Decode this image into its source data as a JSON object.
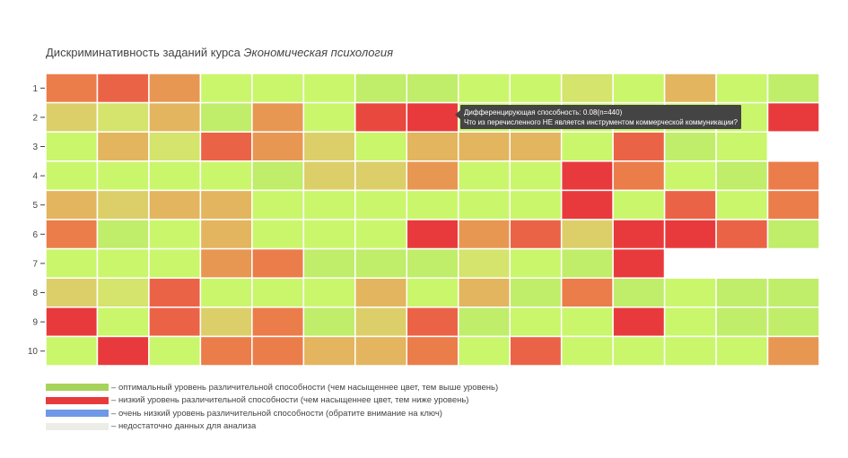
{
  "chart_data": {
    "type": "heatmap",
    "title_main": "Дискриминативность заданий курса ",
    "title_course": "Экономическая психология",
    "y_categories": [
      "1",
      "2",
      "3",
      "4",
      "5",
      "6",
      "7",
      "8",
      "9",
      "10"
    ],
    "columns": 15,
    "colors": {
      "G1": "#b4e069",
      "G2": "#c0ed6a",
      "G3": "#caf66c",
      "Y1": "#d4e46c",
      "Y2": "#dccf6a",
      "O1": "#e3b55f",
      "O2": "#e89752",
      "O3": "#eb7d4a",
      "R1": "#eb6346",
      "R2": "#e9483f",
      "R3": "#e83a3c",
      "N": "#ecede6",
      "empty": "#ffffff"
    },
    "grid": [
      [
        "O3",
        "R1",
        "O2",
        "G3",
        "G3",
        "G3",
        "G2",
        "G2",
        "G3",
        "G3",
        "Y1",
        "G3",
        "O1",
        "G3",
        "G2"
      ],
      [
        "Y2",
        "Y1",
        "O1",
        "G2",
        "O2",
        "G3",
        "R2",
        "R3",
        "G3",
        "G3",
        "G3",
        "G3",
        "G3",
        "G3",
        "R3"
      ],
      [
        "G3",
        "O1",
        "Y1",
        "R1",
        "O2",
        "Y2",
        "G3",
        "O1",
        "O1",
        "O1",
        "G3",
        "R1",
        "G2",
        "G3",
        "empty"
      ],
      [
        "G3",
        "G3",
        "G3",
        "G3",
        "G2",
        "Y2",
        "Y2",
        "O2",
        "G3",
        "G3",
        "R3",
        "O3",
        "G3",
        "G2",
        "O3"
      ],
      [
        "O1",
        "Y2",
        "O1",
        "O1",
        "G3",
        "G3",
        "G3",
        "G3",
        "G3",
        "G3",
        "R3",
        "G3",
        "R1",
        "G3",
        "O3"
      ],
      [
        "O3",
        "G2",
        "G3",
        "O1",
        "G3",
        "G3",
        "G3",
        "R3",
        "O2",
        "R1",
        "Y2",
        "R3",
        "R3",
        "R1",
        "G2"
      ],
      [
        "G3",
        "G3",
        "G3",
        "O2",
        "O3",
        "G2",
        "G2",
        "G2",
        "Y1",
        "G3",
        "G2",
        "R3",
        "empty",
        "empty",
        "empty"
      ],
      [
        "Y2",
        "Y1",
        "R1",
        "G3",
        "G3",
        "G3",
        "O1",
        "G3",
        "O1",
        "G2",
        "O3",
        "G2",
        "G3",
        "G2",
        "G2"
      ],
      [
        "R3",
        "G3",
        "R1",
        "Y2",
        "O3",
        "G2",
        "Y2",
        "R1",
        "G2",
        "G3",
        "G3",
        "R3",
        "G3",
        "G2",
        "G2"
      ],
      [
        "G3",
        "R3",
        "G3",
        "O3",
        "O3",
        "O1",
        "O1",
        "O3",
        "G3",
        "R1",
        "G3",
        "G3",
        "G3",
        "G3",
        "O2"
      ]
    ],
    "legend": [
      {
        "label": "оптимальный уровень различительной способности (чем насыщеннее цвет, тем выше уровень)",
        "color": "#a8d35a"
      },
      {
        "label": "низкий уровень различительной способности (чем насыщеннее цвет, тем ниже уровень)",
        "color": "#e83a3c"
      },
      {
        "label": "очень низкий уровень различительной способности (обратите внимание на ключ)",
        "color": "#6f98e6"
      },
      {
        "label": "недостаточно данных для анализа",
        "color": "#ecede6"
      }
    ],
    "tooltip": {
      "line1": "Дифференцирующая способность: 0.08(n=440)",
      "line2": "Что из перечисленного НЕ является инструментом коммерческой коммуникации?"
    }
  }
}
